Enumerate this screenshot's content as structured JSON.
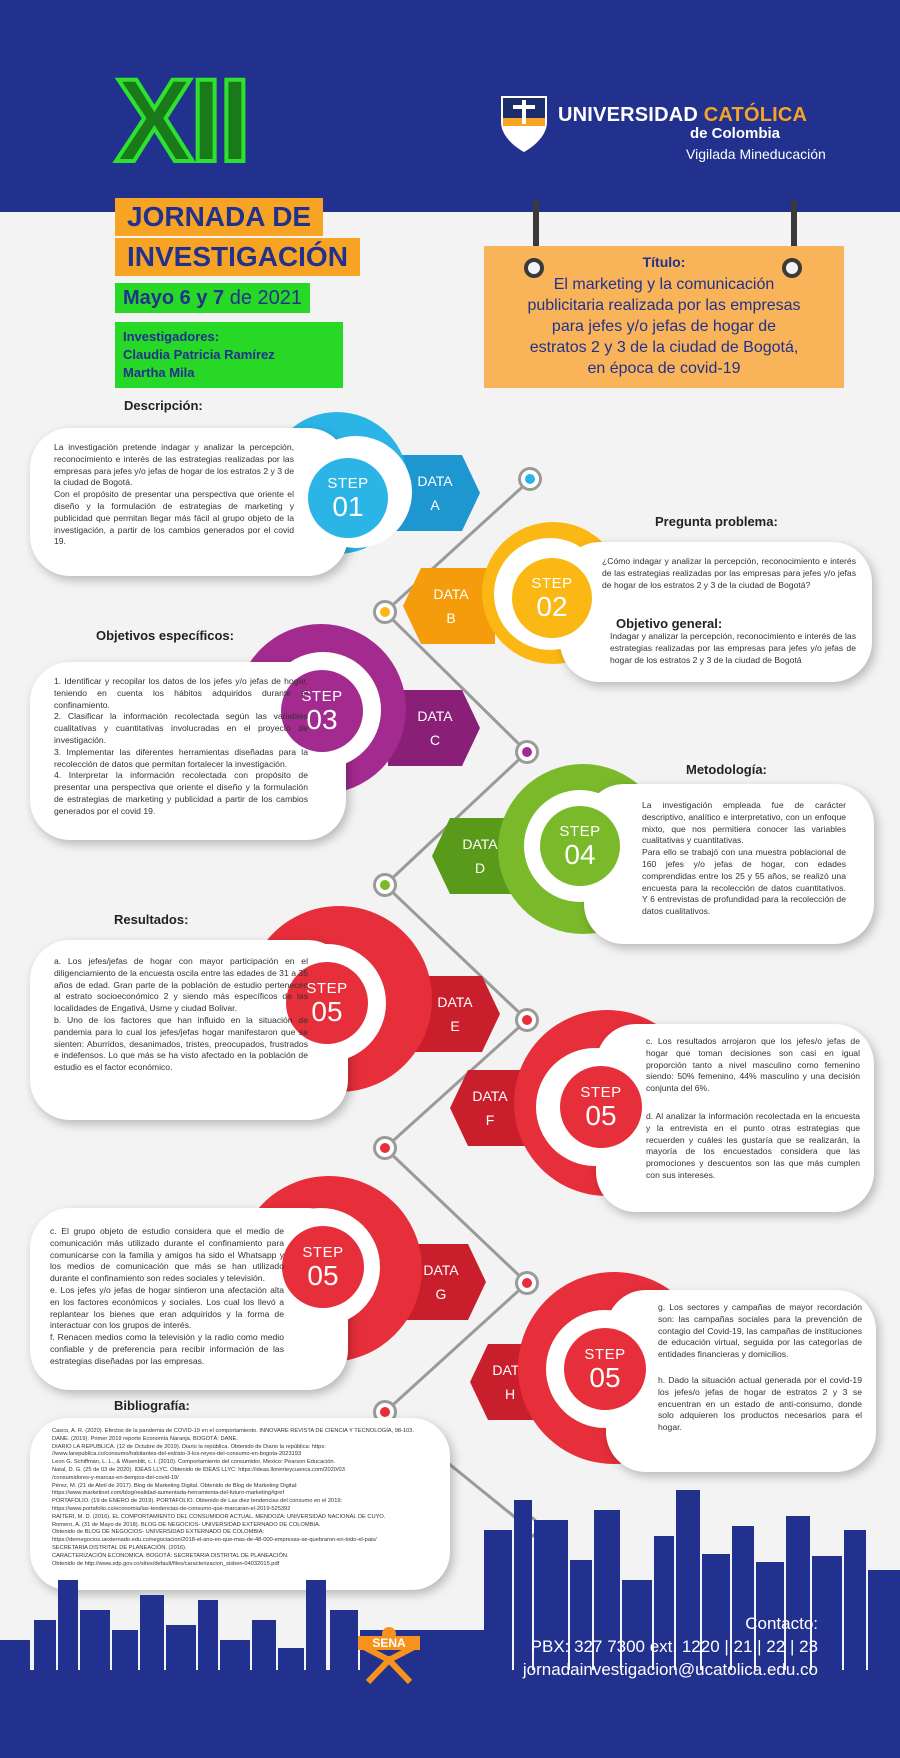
{
  "header": {
    "roman": "XII",
    "jornada": "JORNADA DE",
    "investigacion": "INVESTIGACIÓN",
    "date_bold": "Mayo 6 y 7",
    "date_rest": "de 2021",
    "investigators_label": "Investigadores:",
    "investigators": [
      "Claudia Patricia Ramírez",
      "Martha Mila"
    ]
  },
  "university": {
    "name_1": "UNIVERSIDAD ",
    "name_2": "CATÓLICA",
    "name_3": "de Colombia",
    "vigilada": "Vigilada Mineducación"
  },
  "title_box": {
    "label": "Título:",
    "lines": [
      "El marketing y la comunicación",
      "publicitaria realizada por las empresas",
      "para jefes y/o jefas de hogar de",
      "estratos 2 y 3 de la ciudad de Bogotá,",
      "en época de covid-19"
    ]
  },
  "sections": {
    "descripcion": "Descripción:",
    "pregunta": "Pregunta problema:",
    "objetivo_general": "Objetivo general:",
    "objetivos": "Objetivos específicos:",
    "metodologia": "Metodología:",
    "resultados": "Resultados:",
    "bibliografia": "Bibliografía:"
  },
  "step_word": "STEP",
  "data_word": "DATA",
  "steps": [
    {
      "num": "01",
      "data": "A",
      "color": "#2bb5e6",
      "dark": "#1e96d0"
    },
    {
      "num": "02",
      "data": "B",
      "color": "#fbb713",
      "dark": "#f59c0c"
    },
    {
      "num": "03",
      "data": "C",
      "color": "#a32a8f",
      "dark": "#8a1f78"
    },
    {
      "num": "04",
      "data": "D",
      "color": "#7ab929",
      "dark": "#5a9a1a"
    },
    {
      "num": "05",
      "data": "E",
      "color": "#e62f3a",
      "dark": "#c91f2c"
    },
    {
      "num": "05",
      "data": "F",
      "color": "#e62f3a",
      "dark": "#c91f2c"
    },
    {
      "num": "05",
      "data": "G",
      "color": "#e62f3a",
      "dark": "#c91f2c"
    },
    {
      "num": "05",
      "data": "H",
      "color": "#e62f3a",
      "dark": "#c91f2c"
    }
  ],
  "texts": {
    "descripcion": [
      "La investigación pretende indagar y analizar la percepción, reconocimiento e interés de las estrategias realizadas por las empresas para jefes y/o jefas de hogar de los estratos 2 y 3 de la ciudad de Bogotá.",
      "Con el propósito de presentar una perspectiva que oriente el diseño y la formulación de estrategias de marketing y publicidad que permitan llegar más fácil al grupo objeto de la investigación, a partir de los cambios generados por el covid 19."
    ],
    "pregunta": "¿Cómo indagar y analizar la percepción, reconocimiento e interés de las estrategias realizadas por las empresas para jefes y/o jefas de hogar de los estratos 2 y 3 de la ciudad de Bogotá?",
    "objetivo_general": "Indagar y analizar la percepción, reconocimiento e interés de las estrategias realizadas por las empresas para jefes y/o jefas de hogar de los estratos 2 y 3 de la ciudad de Bogotá",
    "objetivos": [
      "1. Identificar y recopilar los datos de los jefes y/o jefas de hogar, teniendo en cuenta los hábitos adquiridos durante el confinamiento.",
      "2. Clasificar la información recolectada según las variables cualitativas y cuantitativas involucradas en el proyecto de investigación.",
      "3. Implementar las diferentes herramientas diseñadas para la recolección de datos que permitan fortalecer la investigación.",
      "4. Interpretar la información recolectada con propósito de presentar una perspectiva que oriente el diseño y la formulación de estrategias de marketing y publicidad a partir de los cambios generados por el covid 19."
    ],
    "metodologia": [
      "La investigación empleada fue de carácter descriptivo, analítico e interpretativo, con un enfoque mixto, que nos permitiera conocer las variables cualitativas y cuantitativas.",
      "Para ello se trabajó con una muestra poblacional de 160 jefes y/o jefas de hogar, con edades comprendidas entre los 25 y 55 años, se realizó una encuesta para la recolección de datos cuantitativos. Y 6 entrevistas de profundidad para la recolección de datos cualitativos."
    ],
    "resultados_ab": [
      "a. Los jefes/jefas de hogar con mayor participación en el diligenciamiento de la encuesta oscila entre las edades de 31 a 35 años de edad. Gran parte de la población de estudio pertenecen al estrato socioeconómico 2 y siendo más específicos de las localidades de Engativá, Usme y ciudad Bolivar.",
      "b. Uno de los factores que han influido en la situación de pandemia para lo cual los jefes/jefas hogar manifestaron que se sienten: Aburridos, desanimados, tristes, preocupados, frustrados e indefensos. Lo que más se ha visto afectado en la población de estudio es el factor económico."
    ],
    "resultados_cd": [
      "c. Los resultados arrojaron que los jefes/o jefas de hogar que toman decisiones son casi en igual proporción tanto a nivel masculino como femenino siendo: 50% femenino, 44% masculino y una decisión conjunta del 6%.",
      "d. Al analizar la información recolectada en la encuesta y la entrevista en el punto otras estrategias que recuerden y cuáles les gustaría que se realizarán, la mayoría de los encuestados considera que las promociones y descuentos son las que más cumplen con sus intereses."
    ],
    "resultados_cef": [
      "c. El grupo objeto de estudio considera que el medio de comunicación más utilizado durante el confinamiento para comunicarse con la familia y amigos ha sido el Whatsapp y los medios de comunicación que más se han utilizado durante el confinamiento son redes sociales y televisión.",
      "e. Los jefes y/o jefas de hogar sintieron una afectación alta en los factores económicos y sociales. Los cual los llevó a replantear los bienes que eran adquiridos y la forma de interactuar con los grupos de interés.",
      "f. Renacen medios como la televisión y la radio como medio confiable y de preferencia para recibir información de las estrategias diseñadas por las empresas."
    ],
    "resultados_gh": [
      "g. Los sectores y campañas de mayor recordación son: las campañas sociales para la prevención de contagio del Covid-19, las campañas de instituciones de educación virtual, seguida por las categorías de entidades financieras y domicilios.",
      "h. Dado la situación actual generada por el covid-19 los jefes/o jefas de hogar de estratos 2 y 3 se encuentran en un estado de anti-consumo, donde solo adquieren los productos necesarios para el hogar."
    ],
    "bibliografia": [
      "Casco, A. R. (2020). Efectos de la pandemia de COVID-19 en el comportamiento. INNOVARE REVISTA DE CIENCIA Y TECNOLOGÍA, 98-103.",
      "DANE. (2019). Primer 2019 reporte Economía Naranja. BOGOTÁ: DANE.",
      "DIARIO LA REPUBLICA. (12 de Octubre de 2019). Diario la república. Obtenido de Diario la república: https:",
      "//www.larepublica.co/consumo/habitantes-del-estrato-3-los-reyes-del-consumo-en-bogota-2023193",
      "Leon G. Schiffman, L. L., & Wisenblit, c. l. (2010). Comportamiento del consumidor. Mexico: Pearson Educación.",
      "Natal, D. G. (25 de 03 de 2020). IDEAS LLYC. Obtenido de IDEAS LLYC: https://ideas.llorenteycuenca.com/2020/03",
      "/consumidores-y-marcas-en-tiempos-del-covid-19/",
      "Pérez, M. (21 de Abril de 2017). Blog de Marketing Digital. Obtenido de Blog de Marketing Digital:",
      "https://www.marketinet.com/blog/realidad-aumentada-herramienta-del-futuro-marketing#gref",
      "PORTAFOLIO. (19 de ENERO de 2019). PORTAFOLIO. Obtenido de Las diez tendencias del consumo en el 2019:",
      "https://www.portafolio.co/economia/las-tendencias-de-consumo-que-marcaran-el-2019-525392",
      "RAITERI, M. D. (2016). EL COMPORTAMIENTO DEL CONSUMIDOR ACTUAL. MENDOZA: UNIVERSIDAD NACIONAL DE CUYO.",
      "Romero, A. (31 de Mayo de 2018). BLOG DE NEGOCIOS- UNIVERSIDAD EXTERNADO DE COLOMBIA.",
      "Obtenido de BLOG DE NEGOCIOS- UNIVERSIDAD EXTERNADO DE COLOMBIA:",
      "https://dernegocios.uexternado.edu.co/negociacion/2018-el-ano-en-que-mas-de-48-000-empresas-se-quebraron-en-todo-el-pais/",
      "SECRETARIA DISTRITAL DE PLANEACIÓN. (2016).",
      "CARACTERIZACIÓN ECONOMICA. BOGOTÁ: SECRETARIA DISTRITAL DE PLANEACIÓN.",
      " Obtenido de http://www.sdp.gov.co/sites/default/files/caracterizacion_sisben-04032015.pdf"
    ]
  },
  "contact": {
    "label": "Contacto:",
    "phone": "PBX: 327 7300 ext. 1220 | 21 | 22 | 23",
    "email": "jornadainvestigacion@ucatolica.edu.co"
  },
  "sena": "SENA",
  "colors": {
    "navy": "#22318d",
    "orange": "#f7a425",
    "green": "#27d827"
  }
}
